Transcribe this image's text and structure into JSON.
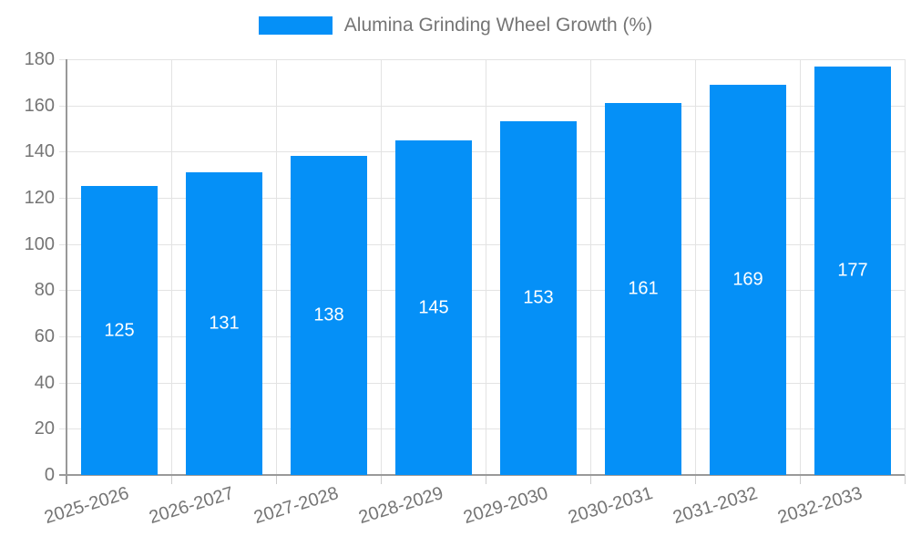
{
  "chart_data": {
    "type": "bar",
    "title": "Alumina Grinding Wheel Growth (%)",
    "legend": {
      "label": "Alumina Grinding Wheel Growth (%)",
      "position": "top-center"
    },
    "categories": [
      "2025-2026",
      "2026-2027",
      "2027-2028",
      "2028-2029",
      "2029-2030",
      "2030-2031",
      "2031-2032",
      "2032-2033"
    ],
    "values": [
      125,
      131,
      138,
      145,
      153,
      161,
      169,
      177
    ],
    "xlabel": "",
    "ylabel": "",
    "ylim": [
      0,
      180
    ],
    "ytick_step": 20,
    "yticks": [
      0,
      20,
      40,
      60,
      80,
      100,
      120,
      140,
      160,
      180
    ],
    "grid": "on",
    "value_labels": "centered-inside-bars",
    "xtick_rotation_deg": -17,
    "colors": {
      "bar": "#0590f7",
      "value_label": "#ffffff",
      "axis_text": "#757575",
      "axis_line": "#999999",
      "gridline": "#e3e3e3"
    }
  }
}
